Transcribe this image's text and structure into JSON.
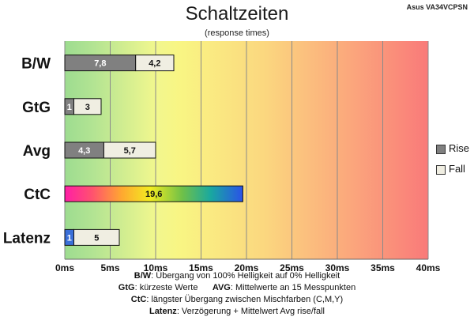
{
  "chart_data": {
    "type": "bar",
    "orientation": "horizontal",
    "stacked": true,
    "title": "Schaltzeiten",
    "subtitle": "(response times)",
    "model": "Asus VA34VCPSN",
    "categories": [
      "B/W",
      "GtG",
      "Avg",
      "CtC",
      "Latenz"
    ],
    "series": [
      {
        "name": "Rise",
        "values": [
          7.8,
          1,
          4.3,
          null,
          1
        ]
      },
      {
        "name": "Fall",
        "values": [
          4.2,
          3,
          5.7,
          null,
          5
        ]
      }
    ],
    "ctc_value": 19.6,
    "value_labels": [
      [
        "7,8",
        "4,2"
      ],
      [
        "1",
        "3"
      ],
      [
        "4,3",
        "5,7"
      ],
      [
        "19,6"
      ],
      [
        "1",
        "5"
      ]
    ],
    "xlim": [
      0,
      40
    ],
    "xticks": [
      "0ms",
      "5ms",
      "10ms",
      "15ms",
      "20ms",
      "25ms",
      "30ms",
      "35ms",
      "40ms"
    ],
    "grid": true,
    "legend": {
      "position": "right",
      "items": [
        "Rise",
        "Fall"
      ]
    },
    "colors": {
      "rise": "#808080",
      "fall": "#f0eee2",
      "latency_rise": "#3a6fd8",
      "outline": "#111111"
    }
  },
  "notes": [
    {
      "key": "B/W",
      "text": ":  Übergang von 100% Helligkeit auf 0% Helligkeit"
    },
    {
      "key": "GtG",
      "text": ": kürzeste  Werte",
      "key2": "AVG",
      "text2": ": Mittelwerte  an 15 Messpunkten"
    },
    {
      "key": "CtC",
      "text": ": längster Übergang  zwischen Mischfarben (C,M,Y)"
    },
    {
      "key": "Latenz",
      "text": ": Verzögerung  + Mittelwert Avg rise/fall"
    }
  ]
}
